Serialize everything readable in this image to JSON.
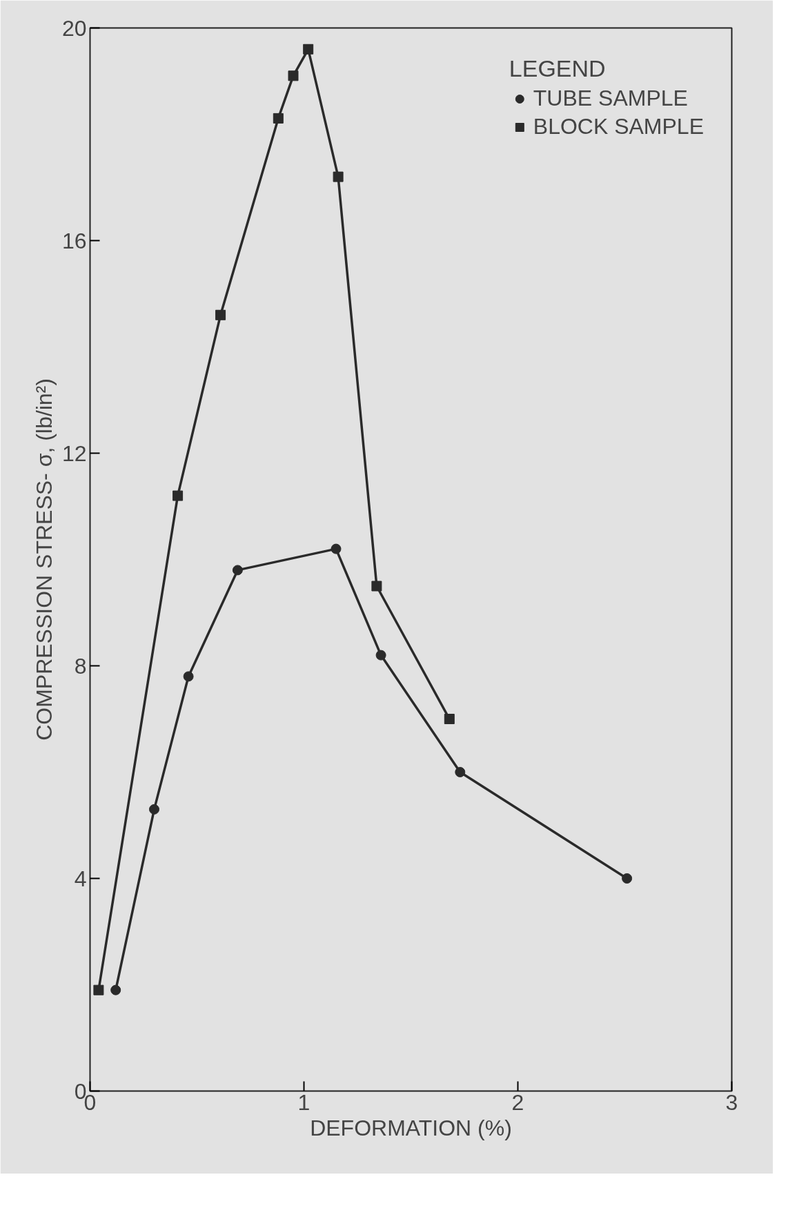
{
  "chart_data": {
    "type": "line",
    "xlabel": "DEFORMATION (%)",
    "ylabel": "COMPRESSION STRESS- σ, (lb/in²)",
    "legend_title": "LEGEND",
    "legend": "top right",
    "grid": false,
    "xlim": [
      0,
      3
    ],
    "xticks": [
      0,
      1,
      2,
      3
    ],
    "ylim": [
      0,
      20
    ],
    "yticks": [
      0,
      4,
      8,
      12,
      16,
      20
    ],
    "series": [
      {
        "name": "TUBE SAMPLE",
        "color": "#2a2a2a",
        "marker": "circle",
        "x": [
          0.12,
          0.3,
          0.46,
          0.69,
          1.15,
          1.36,
          1.73,
          2.51
        ],
        "values": [
          1.9,
          5.3,
          7.8,
          9.8,
          10.2,
          8.2,
          6.0,
          4.0
        ]
      },
      {
        "name": "BLOCK SAMPLE",
        "color": "#2a2a2a",
        "marker": "square",
        "x": [
          0.04,
          0.41,
          0.61,
          0.88,
          0.95,
          1.02,
          1.16,
          1.34,
          1.68
        ],
        "values": [
          1.9,
          11.2,
          14.6,
          18.3,
          19.1,
          19.6,
          17.2,
          9.5,
          7.0
        ]
      }
    ]
  }
}
